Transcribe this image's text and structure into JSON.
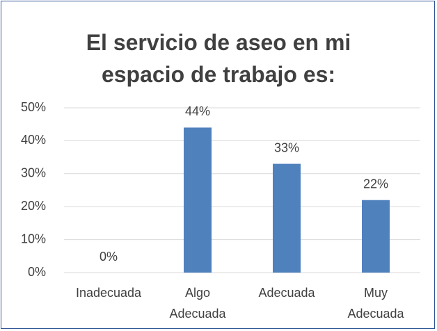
{
  "chart_data": {
    "type": "bar",
    "title": "El servicio de aseo en mi espacio de trabajo es:",
    "categories": [
      "Inadecuada",
      "Algo Adecuada",
      "Adecuada",
      "Muy Adecuada"
    ],
    "values": [
      0,
      44,
      33,
      22
    ],
    "value_labels": [
      "0%",
      "44%",
      "33%",
      "22%"
    ],
    "color": "#4f81bd",
    "ylim": [
      0,
      50
    ],
    "yticks": [
      {
        "value": 0,
        "label": "0%"
      },
      {
        "value": 10,
        "label": "10%"
      },
      {
        "value": 20,
        "label": "20%"
      },
      {
        "value": 30,
        "label": "30%"
      },
      {
        "value": 40,
        "label": "40%"
      },
      {
        "value": 50,
        "label": "50%"
      }
    ],
    "grid": true
  }
}
